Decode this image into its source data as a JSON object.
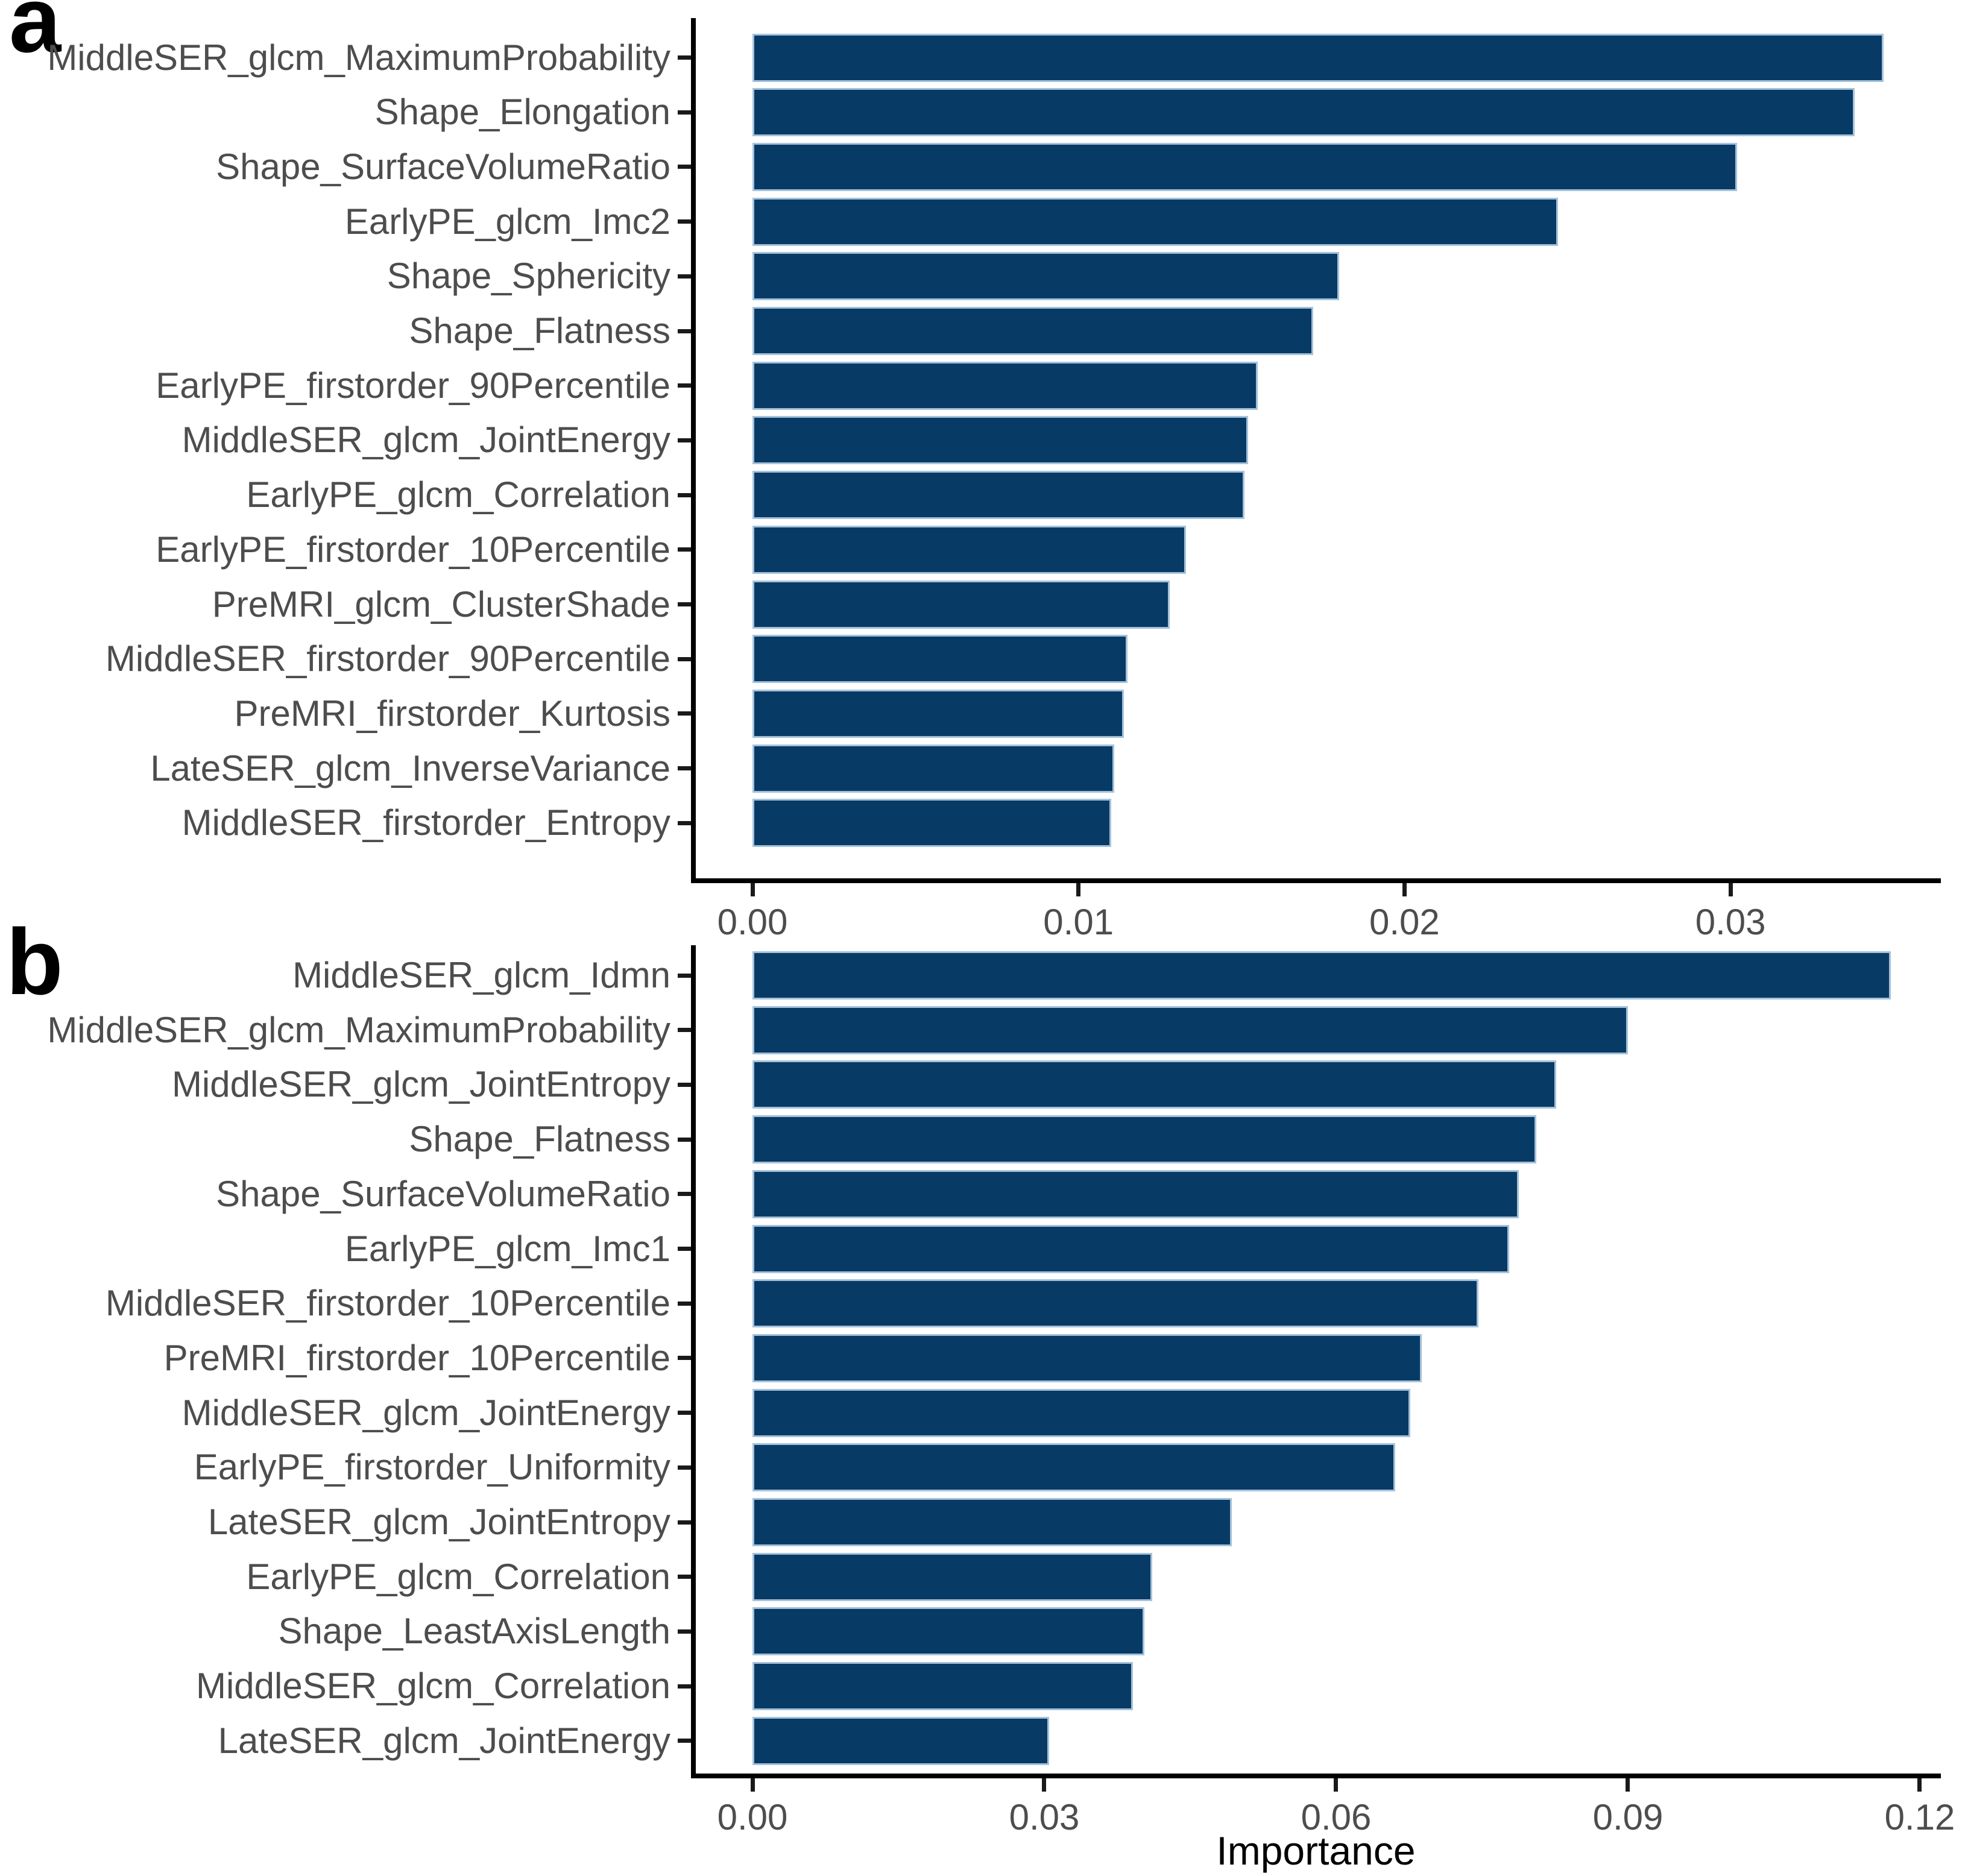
{
  "figure": {
    "background": "#ffffff",
    "bar_fill": "#083A66",
    "bar_stroke": "#A4C2DA",
    "axis_color": "#000000",
    "tick_label_color": "#4d4d4d"
  },
  "chart_data": [
    {
      "type": "bar",
      "orientation": "horizontal",
      "panel_letter": "a",
      "title": "",
      "xlabel": "",
      "ylabel": "",
      "legend": false,
      "grid": false,
      "xlim": [
        0,
        0.0365
      ],
      "xticks": [
        0,
        0.01,
        0.02,
        0.03
      ],
      "xtick_labels": [
        "0.00",
        "0.01",
        "0.02",
        "0.03"
      ],
      "categories": [
        "MiddleSER_glcm_MaximumProbability",
        "Shape_Elongation",
        "Shape_SurfaceVolumeRatio",
        "EarlyPE_glcm_Imc2",
        "Shape_Sphericity",
        "Shape_Flatness",
        "EarlyPE_firstorder_90Percentile",
        "MiddleSER_glcm_JointEnergy",
        "EarlyPE_glcm_Correlation",
        "EarlyPE_firstorder_10Percentile",
        "PreMRI_glcm_ClusterShade",
        "MiddleSER_firstorder_90Percentile",
        "PreMRI_firstorder_Kurtosis",
        "LateSER_glcm_InverseVariance",
        "MiddleSER_firstorder_Entropy"
      ],
      "values": [
        0.0347,
        0.0338,
        0.0302,
        0.0247,
        0.018,
        0.0172,
        0.0155,
        0.0152,
        0.0151,
        0.0133,
        0.0128,
        0.0115,
        0.0114,
        0.0111,
        0.011
      ]
    },
    {
      "type": "bar",
      "orientation": "horizontal",
      "panel_letter": "b",
      "title": "",
      "xlabel": "Importance",
      "ylabel": "",
      "legend": false,
      "grid": false,
      "xlim": [
        0,
        0.1222
      ],
      "xticks": [
        0,
        0.03,
        0.06,
        0.09,
        0.12
      ],
      "xtick_labels": [
        "0.00",
        "0.03",
        "0.06",
        "0.09",
        "0.12"
      ],
      "categories": [
        "MiddleSER_glcm_Idmn",
        "MiddleSER_glcm_MaximumProbability",
        "MiddleSER_glcm_JointEntropy",
        "Shape_Flatness",
        "Shape_SurfaceVolumeRatio",
        "EarlyPE_glcm_Imc1",
        "MiddleSER_firstorder_10Percentile",
        "PreMRI_firstorder_10Percentile",
        "MiddleSER_glcm_JointEnergy",
        "EarlyPE_firstorder_Uniformity",
        "LateSER_glcm_JointEntropy",
        "EarlyPE_glcm_Correlation",
        "Shape_LeastAxisLength",
        "MiddleSER_glcm_Correlation",
        "LateSER_glcm_JointEnergy"
      ],
      "values": [
        0.117,
        0.09,
        0.0826,
        0.0806,
        0.0788,
        0.0778,
        0.0746,
        0.0688,
        0.0676,
        0.0661,
        0.0493,
        0.0411,
        0.0403,
        0.0391,
        0.0305
      ]
    }
  ]
}
